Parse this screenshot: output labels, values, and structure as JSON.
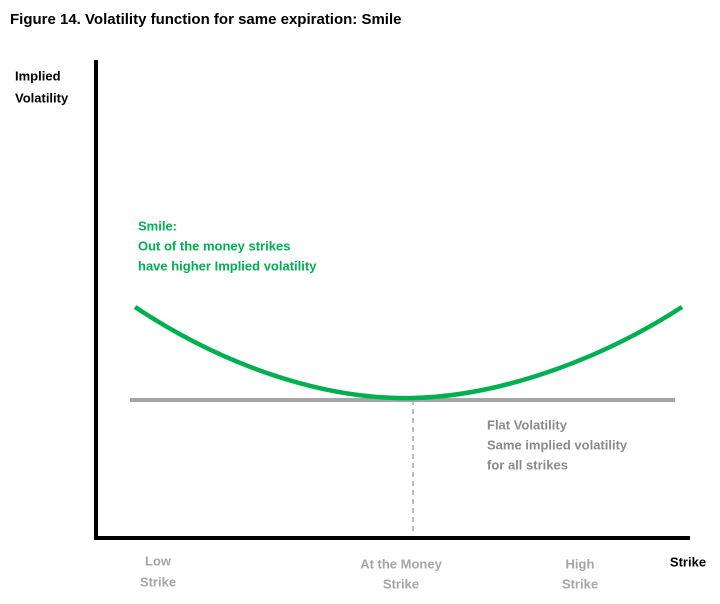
{
  "title": "Figure 14. Volatility function for same expiration: Smile",
  "y_axis_label": [
    "Implied",
    "Volatility"
  ],
  "x_axis_label": "Strike",
  "x_labels": [
    [
      "Low",
      "Strike"
    ],
    [
      "At the Money",
      "Strike"
    ],
    [
      "High",
      "Strike"
    ]
  ],
  "smile_note": [
    "Smile:",
    "Out of the money  strikes",
    "have higher Implied volatility"
  ],
  "flat_note": [
    "Flat Volatility",
    "Same implied volatility",
    "for all strikes"
  ]
}
